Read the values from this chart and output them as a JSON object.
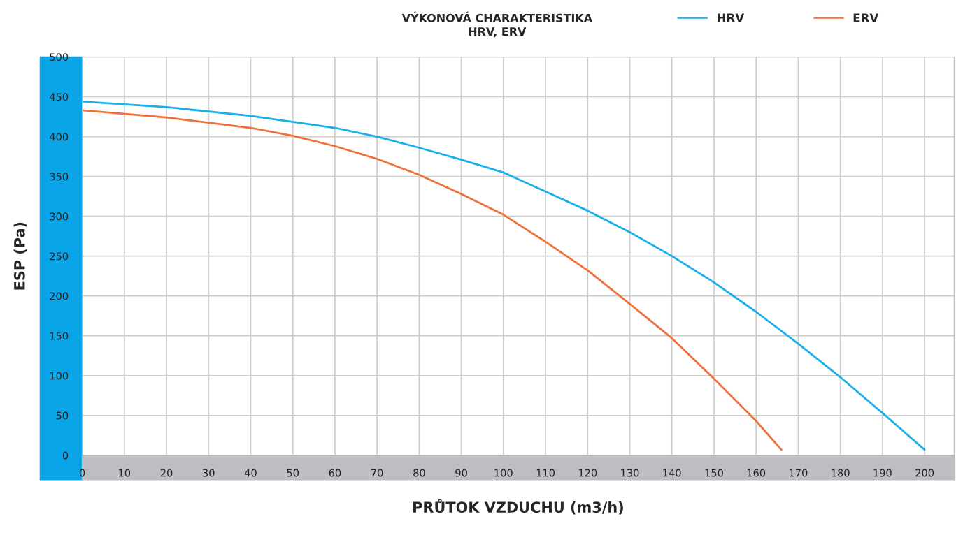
{
  "chart_data": {
    "type": "line",
    "title": "VÝKONOVÁ CHARAKTERISTIKA",
    "subtitle": "HRV, ERV",
    "xlabel": "PRŮTOK VZDUCHU (m3/h)",
    "ylabel": "ESP (Pa)",
    "xlim": [
      0,
      207
    ],
    "xticks": [
      0,
      10,
      20,
      30,
      40,
      50,
      60,
      70,
      80,
      90,
      100,
      110,
      120,
      130,
      140,
      150,
      160,
      170,
      180,
      190,
      200
    ],
    "ylim": [
      0,
      500
    ],
    "yticks": [
      0,
      50,
      100,
      150,
      200,
      250,
      300,
      350,
      400,
      450,
      500
    ],
    "grid": true,
    "legend": "top right",
    "marker": "none",
    "line_style": "solid",
    "series": [
      {
        "name": "HRV",
        "color": "#1ab0ec",
        "x": [
          0,
          20,
          40,
          60,
          70,
          80,
          90,
          100,
          110,
          120,
          130,
          140,
          150,
          160,
          170,
          180,
          190,
          200
        ],
        "values": [
          444,
          437,
          426,
          411,
          400,
          386,
          371,
          355,
          331,
          307,
          280,
          250,
          217,
          180,
          140,
          98,
          53,
          7
        ]
      },
      {
        "name": "ERV",
        "color": "#f0703a",
        "x": [
          0,
          20,
          40,
          50,
          60,
          70,
          80,
          90,
          100,
          110,
          120,
          130,
          140,
          150,
          160,
          166
        ],
        "values": [
          433,
          424,
          411,
          401,
          388,
          372,
          352,
          328,
          302,
          268,
          232,
          190,
          147,
          96,
          43,
          7
        ]
      }
    ]
  }
}
